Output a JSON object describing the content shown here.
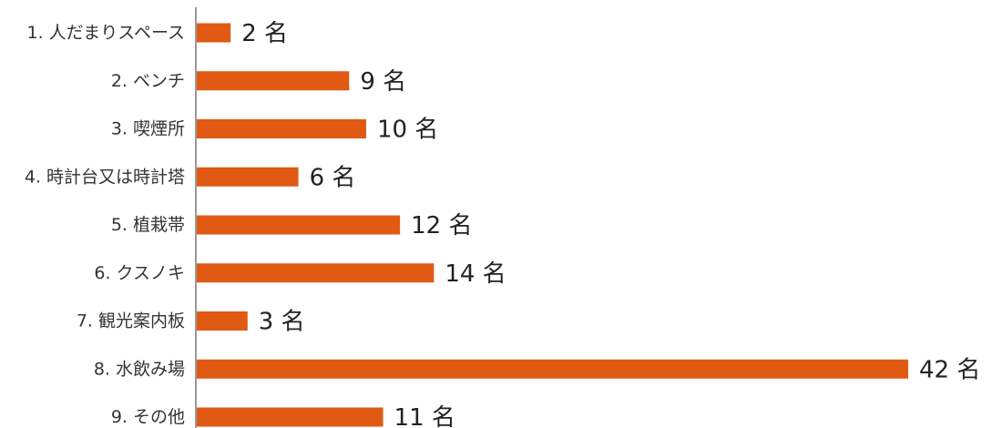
{
  "chart_data": {
    "type": "bar",
    "orientation": "horizontal",
    "categories": [
      "1. 人だまりスペース",
      "2. ベンチ",
      "3. 喫煙所",
      "4. 時計台又は時計塔",
      "5. 植栽帯",
      "6. クスノキ",
      "7. 観光案内板",
      "8. 水飲み場",
      "9. その他"
    ],
    "values": [
      2,
      9,
      10,
      6,
      12,
      14,
      3,
      42,
      11
    ],
    "value_labels": [
      "2 名",
      "9 名",
      "10 名",
      "6 名",
      "12 名",
      "14 名",
      "3 名",
      "42 名",
      "11 名"
    ],
    "xlim": [
      0,
      42
    ],
    "grid": false,
    "legend": "none",
    "bar_color": "#e05a14",
    "axis_color": "#999999"
  }
}
